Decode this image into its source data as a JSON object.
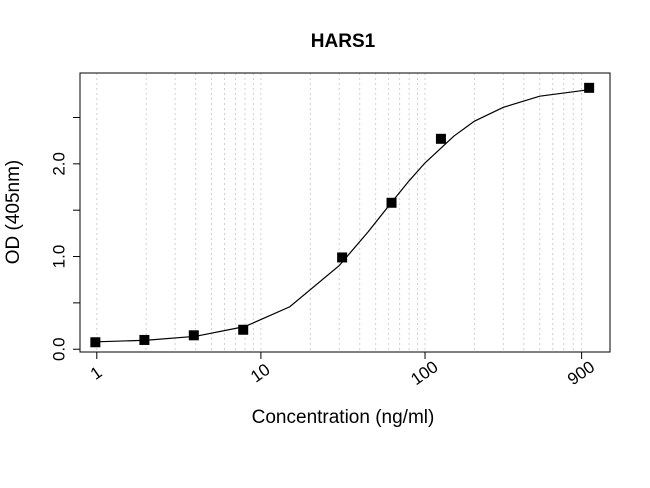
{
  "chart_data": {
    "type": "scatter",
    "title": "HARS1",
    "x_label": "Concentration (ng/ml)",
    "y_label": "OD (405nm)",
    "x_log": true,
    "xlim": [
      0.79,
      1340
    ],
    "ylim": [
      -0.03,
      2.98
    ],
    "xticks": [
      1,
      10,
      100,
      900
    ],
    "xgrid": [
      1,
      2,
      3,
      4,
      5,
      6,
      7,
      8,
      9,
      10,
      20,
      30,
      40,
      50,
      60,
      70,
      80,
      90,
      100,
      200,
      300,
      400,
      500,
      600,
      700,
      800,
      900
    ],
    "yticks": [
      {
        "value": 0,
        "label": "0.0"
      },
      {
        "value": 1,
        "label": "1.0"
      },
      {
        "value": 2,
        "label": "2.0"
      }
    ],
    "yticks_minor": [
      0.5,
      1.5,
      2.5
    ],
    "series": [
      {
        "color": "#000000",
        "marker": "square",
        "x": [
          0.98,
          1.95,
          3.9,
          7.8,
          31.25,
          62.5,
          125,
          1000
        ],
        "values": [
          0.075,
          0.1,
          0.15,
          0.21,
          0.99,
          1.58,
          2.27,
          2.82
        ]
      },
      {
        "color": "#000000",
        "marker": "line",
        "x": [
          1,
          2,
          4,
          8,
          15,
          30,
          45,
          60,
          80,
          100,
          150,
          200,
          300,
          500,
          1000
        ],
        "values": [
          0.08,
          0.097,
          0.139,
          0.245,
          0.458,
          0.902,
          1.266,
          1.545,
          1.817,
          2.01,
          2.3,
          2.46,
          2.61,
          2.73,
          2.8
        ]
      }
    ]
  }
}
